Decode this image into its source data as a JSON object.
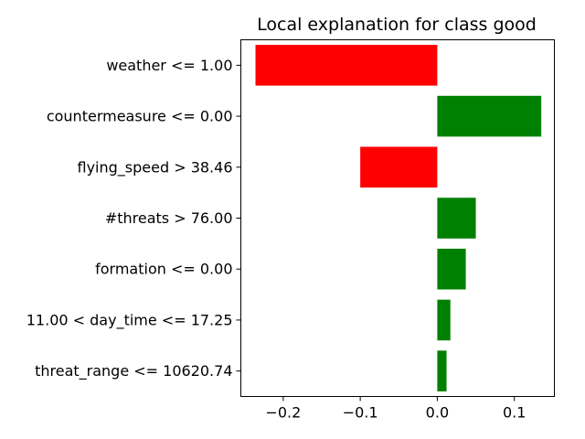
{
  "chart_data": {
    "type": "bar",
    "orientation": "horizontal",
    "title": "Local explanation for class good",
    "xlabel": "",
    "ylabel": "",
    "categories": [
      "weather <= 1.00",
      "countermeasure <= 0.00",
      "flying_speed > 38.46",
      "#threats > 76.00",
      "formation <= 0.00",
      "11.00 < day_time <= 17.25",
      "threat_range <= 10620.74"
    ],
    "values": [
      -0.236,
      0.135,
      -0.1,
      0.05,
      0.037,
      0.017,
      0.012
    ],
    "xlim": [
      -0.255,
      0.152
    ],
    "xticks": [
      -0.2,
      -0.1,
      0.0,
      0.1
    ],
    "xtick_labels": [
      "−0.2",
      "−0.1",
      "0.0",
      "0.1"
    ],
    "grid": false,
    "colors": {
      "positive": "#008000",
      "negative": "#ff0000"
    }
  }
}
